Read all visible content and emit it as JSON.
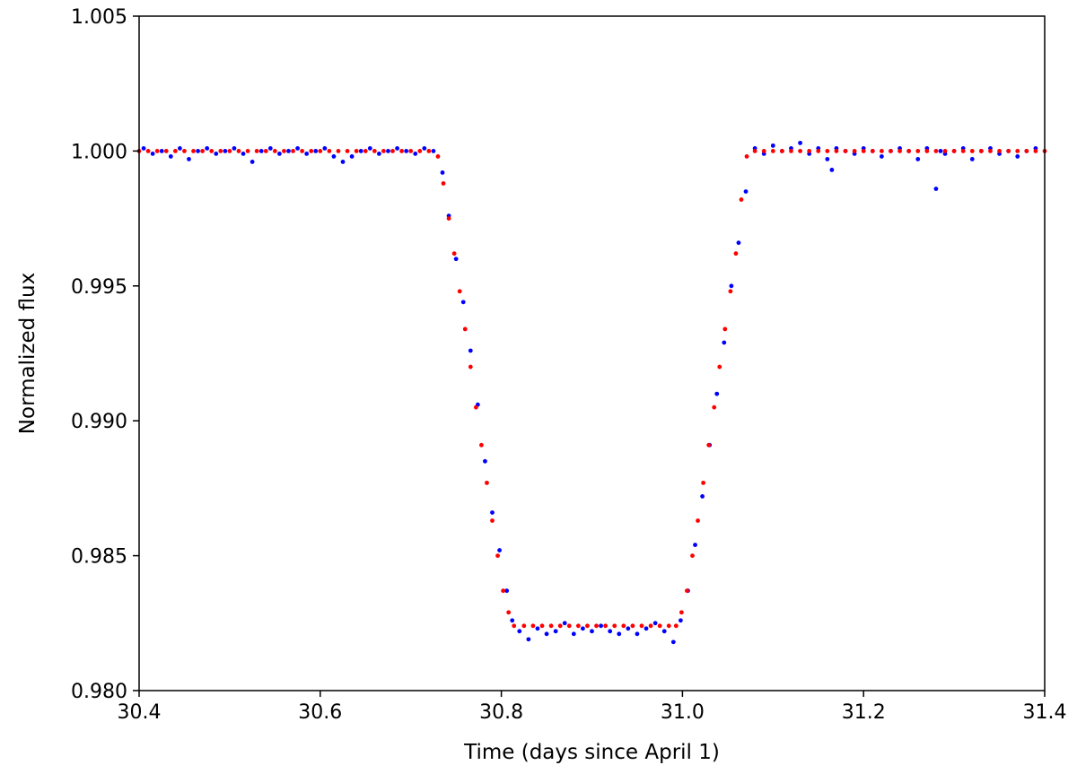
{
  "chart_data": {
    "type": "scatter",
    "title": "",
    "xlabel": "Time (days since April 1)",
    "ylabel": "Normalized flux",
    "xlim": [
      30.4,
      31.4
    ],
    "ylim": [
      0.98,
      1.005
    ],
    "xticks": [
      30.4,
      30.6,
      30.8,
      31.0,
      31.2,
      31.4
    ],
    "xtick_labels": [
      "30.4",
      "30.6",
      "30.8",
      "31.0",
      "31.2",
      "31.4"
    ],
    "yticks": [
      0.98,
      0.985,
      0.99,
      0.995,
      1.0,
      1.005
    ],
    "ytick_labels": [
      "0.980",
      "0.985",
      "0.990",
      "0.995",
      "1.000",
      "1.005"
    ],
    "grid": false,
    "legend": false,
    "series": [
      {
        "role": "observed",
        "color": "#0000ff",
        "x": [
          30.405,
          30.415,
          30.425,
          30.435,
          30.445,
          30.455,
          30.465,
          30.475,
          30.485,
          30.495,
          30.505,
          30.515,
          30.525,
          30.535,
          30.545,
          30.555,
          30.565,
          30.575,
          30.585,
          30.595,
          30.605,
          30.615,
          30.625,
          30.635,
          30.645,
          30.655,
          30.665,
          30.675,
          30.685,
          30.695,
          30.705,
          30.715,
          30.725,
          30.735,
          30.742,
          30.75,
          30.758,
          30.766,
          30.774,
          30.782,
          30.79,
          30.798,
          30.806,
          30.812,
          30.82,
          30.83,
          30.84,
          30.85,
          30.86,
          30.87,
          30.88,
          30.89,
          30.9,
          30.91,
          30.92,
          30.93,
          30.94,
          30.95,
          30.96,
          30.97,
          30.98,
          30.99,
          30.998,
          31.006,
          31.014,
          31.022,
          31.03,
          31.038,
          31.046,
          31.054,
          31.062,
          31.07,
          31.08,
          31.09,
          31.1,
          31.11,
          31.12,
          31.13,
          31.14,
          31.15,
          31.16,
          31.165,
          31.17,
          31.18,
          31.19,
          31.2,
          31.21,
          31.22,
          31.23,
          31.24,
          31.25,
          31.26,
          31.27,
          31.28,
          31.285,
          31.29,
          31.3,
          31.31,
          31.32,
          31.33,
          31.34,
          31.35,
          31.36,
          31.37,
          31.38,
          31.39
        ],
        "y": [
          1.0001,
          0.9999,
          1.0,
          0.9998,
          1.0001,
          0.9997,
          1.0,
          1.0001,
          0.9999,
          1.0,
          1.0001,
          0.9999,
          0.9996,
          1.0,
          1.0001,
          0.9999,
          1.0,
          1.0001,
          0.9999,
          1.0,
          1.0001,
          0.9998,
          0.9996,
          0.9998,
          1.0,
          1.0001,
          0.9999,
          1.0,
          1.0001,
          1.0,
          0.9999,
          1.0001,
          1.0,
          0.9992,
          0.9976,
          0.996,
          0.9944,
          0.9926,
          0.9906,
          0.9885,
          0.9866,
          0.9852,
          0.9837,
          0.9826,
          0.9822,
          0.9819,
          0.9823,
          0.9821,
          0.9822,
          0.9825,
          0.9821,
          0.9823,
          0.9822,
          0.9824,
          0.9822,
          0.9821,
          0.9823,
          0.9821,
          0.9823,
          0.9825,
          0.9822,
          0.9818,
          0.9826,
          0.9837,
          0.9854,
          0.9872,
          0.9891,
          0.991,
          0.9929,
          0.995,
          0.9966,
          0.9985,
          1.0001,
          0.9999,
          1.0002,
          1.0,
          1.0001,
          1.0003,
          0.9999,
          1.0001,
          0.9997,
          0.9993,
          1.0001,
          1.0,
          0.9999,
          1.0001,
          1.0,
          0.9998,
          1.0,
          1.0001,
          1.0,
          0.9997,
          1.0001,
          0.9986,
          1.0,
          0.9999,
          1.0,
          1.0001,
          0.9997,
          1.0,
          1.0001,
          0.9999,
          1.0,
          0.9998,
          1.0,
          1.0001
        ]
      },
      {
        "role": "model",
        "color": "#ff0000",
        "x": [
          30.4,
          30.41,
          30.42,
          30.43,
          30.44,
          30.45,
          30.46,
          30.47,
          30.48,
          30.49,
          30.5,
          30.51,
          30.52,
          30.53,
          30.54,
          30.55,
          30.56,
          30.57,
          30.58,
          30.59,
          30.6,
          30.61,
          30.62,
          30.63,
          30.64,
          30.65,
          30.66,
          30.67,
          30.68,
          30.69,
          30.7,
          30.71,
          30.72,
          30.73,
          30.736,
          30.742,
          30.748,
          30.754,
          30.76,
          30.766,
          30.772,
          30.778,
          30.784,
          30.79,
          30.796,
          30.802,
          30.808,
          30.814,
          30.825,
          30.835,
          30.845,
          30.855,
          30.865,
          30.875,
          30.885,
          30.895,
          30.905,
          30.915,
          30.925,
          30.935,
          30.945,
          30.955,
          30.965,
          30.975,
          30.985,
          30.993,
          30.999,
          31.005,
          31.011,
          31.017,
          31.023,
          31.029,
          31.035,
          31.041,
          31.047,
          31.053,
          31.059,
          31.065,
          31.071,
          31.08,
          31.09,
          31.1,
          31.11,
          31.12,
          31.13,
          31.14,
          31.15,
          31.16,
          31.17,
          31.18,
          31.19,
          31.2,
          31.21,
          31.22,
          31.23,
          31.24,
          31.25,
          31.26,
          31.27,
          31.28,
          31.29,
          31.3,
          31.31,
          31.32,
          31.33,
          31.34,
          31.35,
          31.36,
          31.37,
          31.38,
          31.39,
          31.4
        ],
        "y": [
          1.0,
          1.0,
          1.0,
          1.0,
          1.0,
          1.0,
          1.0,
          1.0,
          1.0,
          1.0,
          1.0,
          1.0,
          1.0,
          1.0,
          1.0,
          1.0,
          1.0,
          1.0,
          1.0,
          1.0,
          1.0,
          1.0,
          1.0,
          1.0,
          1.0,
          1.0,
          1.0,
          1.0,
          1.0,
          1.0,
          1.0,
          1.0,
          1.0,
          0.9998,
          0.9988,
          0.9975,
          0.9962,
          0.9948,
          0.9934,
          0.992,
          0.9905,
          0.9891,
          0.9877,
          0.9863,
          0.985,
          0.9837,
          0.9829,
          0.9824,
          0.9824,
          0.9824,
          0.9824,
          0.9824,
          0.9824,
          0.9824,
          0.9824,
          0.9824,
          0.9824,
          0.9824,
          0.9824,
          0.9824,
          0.9824,
          0.9824,
          0.9824,
          0.9824,
          0.9824,
          0.9824,
          0.9829,
          0.9837,
          0.985,
          0.9863,
          0.9877,
          0.9891,
          0.9905,
          0.992,
          0.9934,
          0.9948,
          0.9962,
          0.9982,
          0.9998,
          1.0,
          1.0,
          1.0,
          1.0,
          1.0,
          1.0,
          1.0,
          1.0,
          1.0,
          1.0,
          1.0,
          1.0,
          1.0,
          1.0,
          1.0,
          1.0,
          1.0,
          1.0,
          1.0,
          1.0,
          1.0,
          1.0,
          1.0,
          1.0,
          1.0,
          1.0,
          1.0,
          1.0,
          1.0,
          1.0,
          1.0,
          1.0,
          1.0
        ]
      }
    ]
  }
}
